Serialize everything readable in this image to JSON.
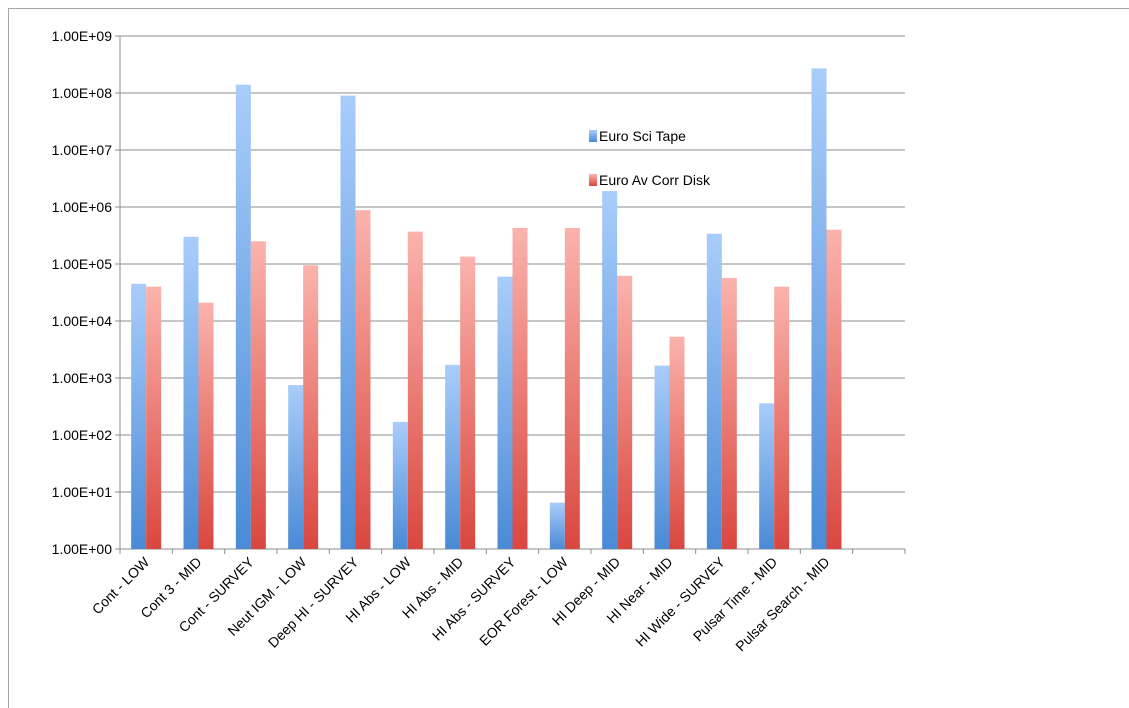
{
  "chart_data": {
    "type": "bar",
    "scale": "log",
    "ylim": [
      1,
      1000000000
    ],
    "y_tick_labels": [
      "1.00E+00",
      "1.00E+01",
      "1.00E+02",
      "1.00E+03",
      "1.00E+04",
      "1.00E+05",
      "1.00E+06",
      "1.00E+07",
      "1.00E+08",
      "1.00E+09"
    ],
    "categories": [
      "Cont - LOW",
      "Cont 3 - MID",
      "Cont - SURVEY",
      "Neut IGM - LOW",
      "Deep HI - SURVEY",
      "HI Abs - LOW",
      "HI Abs - MID",
      "HI Abs - SURVEY",
      "EOR Forest - LOW",
      "HI Deep - MID",
      "HI Near - MID",
      "HI Wide - SURVEY",
      "Pulsar Time - MID",
      "Pulsar Search - MID"
    ],
    "series": [
      {
        "name": "Euro Sci Tape",
        "color": "#4a90d9",
        "values": [
          45000,
          300000,
          140000000,
          750,
          90000000,
          170,
          1700,
          60000,
          6.5,
          1900000,
          1650,
          340000,
          360,
          270000000
        ]
      },
      {
        "name": "Euro Av Corr Disk",
        "color": "#e0524a",
        "values": [
          40000,
          21000,
          250000,
          95000,
          880000,
          370000,
          135000,
          430000,
          430000,
          62000,
          5300,
          57000,
          40000,
          400000
        ]
      }
    ],
    "grid": true,
    "legend_position": "upper-right inside plot"
  }
}
